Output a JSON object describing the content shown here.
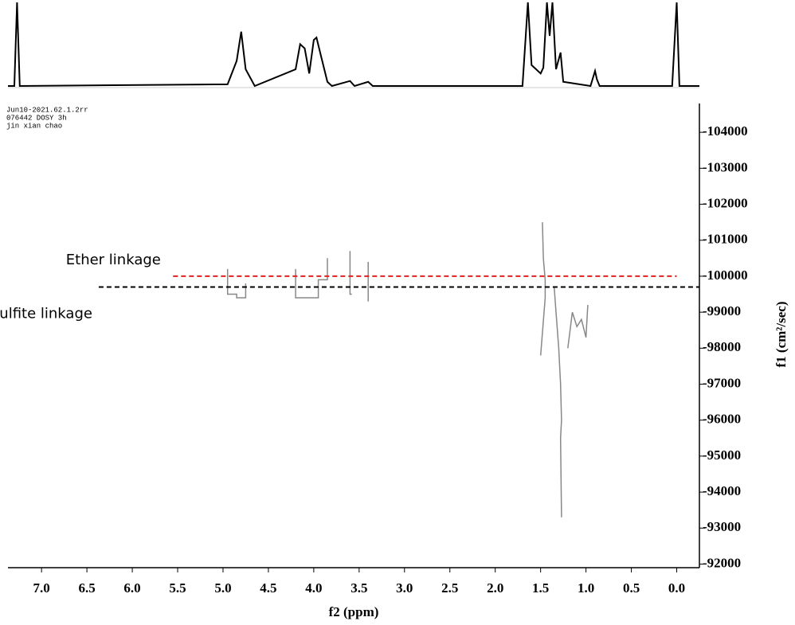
{
  "chart_data": {
    "type": "dosy",
    "x_label": "f2 (ppm)",
    "y_label": "f1 (cm²/sec)",
    "header_lines": [
      "Jun10-2021.62.1.2rr",
      "076442  DOSY  3h",
      "jin xian chao"
    ],
    "xlim": [
      7.37,
      -0.25
    ],
    "ylim": [
      -104800,
      -91900
    ],
    "xticks": [
      {
        "value": 7,
        "label": "7.0"
      },
      {
        "value": 6.5,
        "label": "6.5"
      },
      {
        "value": 6,
        "label": "6.0"
      },
      {
        "value": 5.5,
        "label": "5.5"
      },
      {
        "value": 5,
        "label": "5.0"
      },
      {
        "value": 4.5,
        "label": "4.5"
      },
      {
        "value": 4,
        "label": "4.0"
      },
      {
        "value": 3.5,
        "label": "3.5"
      },
      {
        "value": 3,
        "label": "3.0"
      },
      {
        "value": 2.5,
        "label": "2.5"
      },
      {
        "value": 2,
        "label": "2.0"
      },
      {
        "value": 1.5,
        "label": "1.5"
      },
      {
        "value": 1,
        "label": "1.0"
      },
      {
        "value": 0.5,
        "label": "0.5"
      },
      {
        "value": 0,
        "label": "0.0"
      }
    ],
    "yticks": [
      -104000,
      -103000,
      -102000,
      -101000,
      -100000,
      -99000,
      -98000,
      -97000,
      -96000,
      -95000,
      -94000,
      -93000,
      -92000
    ],
    "spectrum": {
      "color": "#000000",
      "ylim": [
        0,
        100
      ],
      "x": [
        7.37,
        7.3,
        7.27,
        7.24,
        4.95,
        4.85,
        4.8,
        4.75,
        4.65,
        4.2,
        4.15,
        4.1,
        4.05,
        4.0,
        3.97,
        3.93,
        3.85,
        3.8,
        3.6,
        3.55,
        3.4,
        3.35,
        1.7,
        1.64,
        1.6,
        1.55,
        1.5,
        1.47,
        1.43,
        1.4,
        1.37,
        1.33,
        1.28,
        1.25,
        0.95,
        0.9,
        0.88,
        0.85,
        0.05,
        0.0,
        -0.03,
        -0.25
      ],
      "values": [
        0,
        0,
        100,
        0,
        2,
        30,
        65,
        20,
        0,
        20,
        50,
        45,
        15,
        55,
        58,
        40,
        5,
        0,
        6,
        0,
        5,
        0,
        0,
        100,
        25,
        20,
        15,
        22,
        100,
        60,
        100,
        20,
        40,
        5,
        0,
        18,
        8,
        0,
        0,
        100,
        0,
        0
      ]
    },
    "contours": [
      {
        "x": [
          4.95,
          4.95,
          4.85,
          4.85,
          4.75,
          4.75
        ],
        "y": [
          -100200,
          -99500,
          -99500,
          -99400,
          -99400,
          -99800
        ]
      },
      {
        "x": [
          4.2,
          4.2,
          4.05,
          3.95,
          3.95,
          3.85,
          3.85
        ],
        "y": [
          -100200,
          -99400,
          -99400,
          -99400,
          -99900,
          -99900,
          -100500
        ]
      },
      {
        "x": [
          3.6,
          3.6,
          3.58
        ],
        "y": [
          -100700,
          -99500,
          -99500
        ]
      },
      {
        "x": [
          3.4,
          3.4
        ],
        "y": [
          -100400,
          -99300
        ]
      },
      {
        "x": [
          1.48,
          1.47,
          1.45,
          1.45,
          1.5
        ],
        "y": [
          -101500,
          -100500,
          -99900,
          -99400,
          -97800
        ]
      },
      {
        "x": [
          1.35,
          1.33,
          1.3,
          1.28,
          1.27,
          1.28,
          1.27
        ],
        "y": [
          -99700,
          -99000,
          -98000,
          -97000,
          -96000,
          -95500,
          -93300
        ]
      },
      {
        "x": [
          1.2,
          1.15,
          1.1,
          1.05,
          1.0,
          0.98
        ],
        "y": [
          -98000,
          -99000,
          -98600,
          -98800,
          -98300,
          -99200
        ]
      }
    ],
    "reference_lines": [
      {
        "name": "Ether linkage",
        "color": "#e02020",
        "y": -100000,
        "x": [
          5.55,
          0.0
        ]
      },
      {
        "name": "Sulfite linkage",
        "color": "#000000",
        "y": -99700,
        "x": [
          6.37,
          -0.25
        ]
      }
    ]
  }
}
